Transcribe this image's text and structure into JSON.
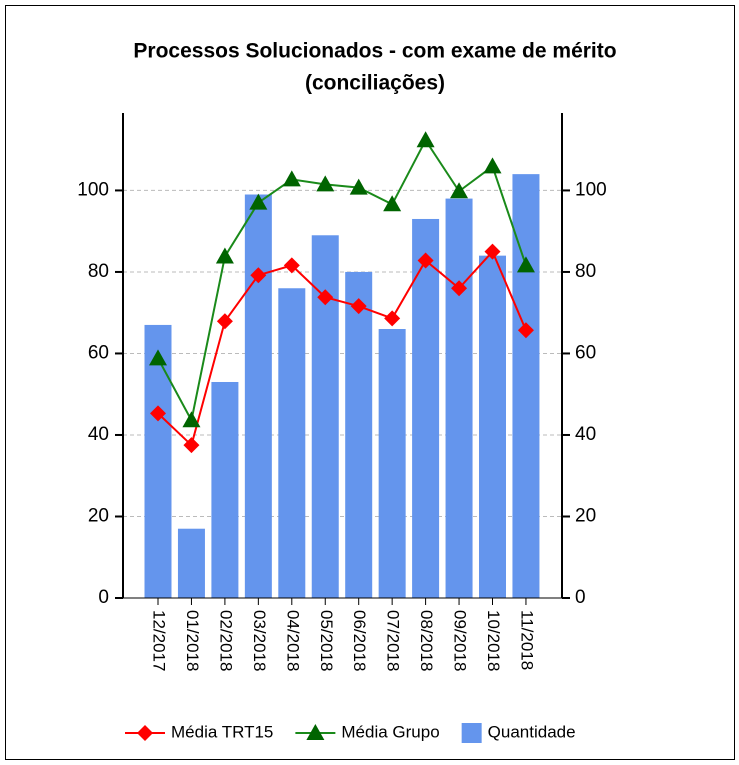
{
  "chart_data": {
    "type": "bar_line",
    "title": [
      "Processos Solucionados - com exame de mérito",
      "(conciliações)"
    ],
    "categories": [
      "12/2017",
      "01/2018",
      "02/2018",
      "03/2018",
      "04/2018",
      "05/2018",
      "06/2018",
      "07/2018",
      "08/2018",
      "09/2018",
      "10/2018",
      "11/2018"
    ],
    "series": [
      {
        "name": "Média TRT15",
        "type": "line",
        "color": "#ff0000",
        "marker": "diamond",
        "values": [
          45.3,
          37.5,
          67.9,
          79.2,
          81.6,
          73.8,
          71.6,
          68.6,
          82.8,
          76,
          85,
          65.7
        ]
      },
      {
        "name": "Média Grupo",
        "type": "line",
        "color": "#006400",
        "marker": "triangle",
        "values": [
          58.8,
          43.6,
          83.8,
          97,
          102.7,
          101.5,
          100.7,
          96.6,
          112.3,
          99.8,
          105.9,
          81.6
        ]
      },
      {
        "name": "Quantidade",
        "type": "bar",
        "color": "#6495ed",
        "axis": "y2",
        "values": [
          67,
          17,
          53,
          99,
          76,
          89,
          80,
          66,
          93,
          98,
          84,
          104
        ]
      }
    ],
    "ylim": [
      0,
      119
    ],
    "yticks": [
      0,
      20,
      40,
      60,
      80,
      100
    ],
    "y2lim": [
      0,
      119
    ],
    "y2ticks": [
      0,
      20,
      40,
      60,
      80,
      100
    ],
    "grid": true
  }
}
